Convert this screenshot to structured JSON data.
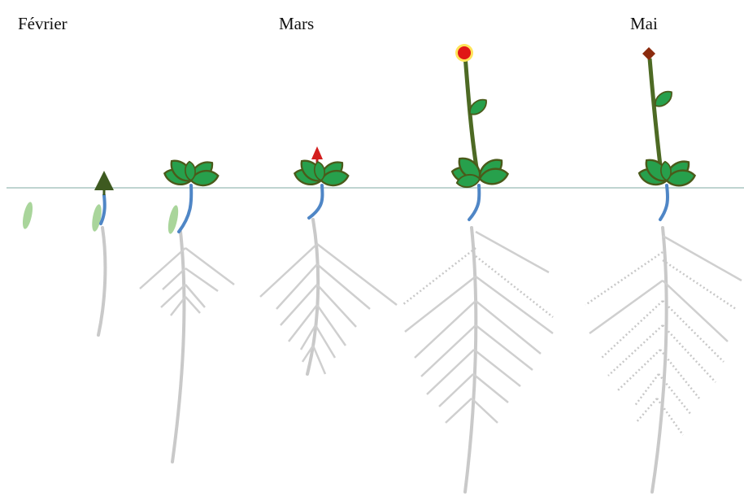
{
  "months": [
    "Février",
    "Mars",
    "Mai"
  ]
}
